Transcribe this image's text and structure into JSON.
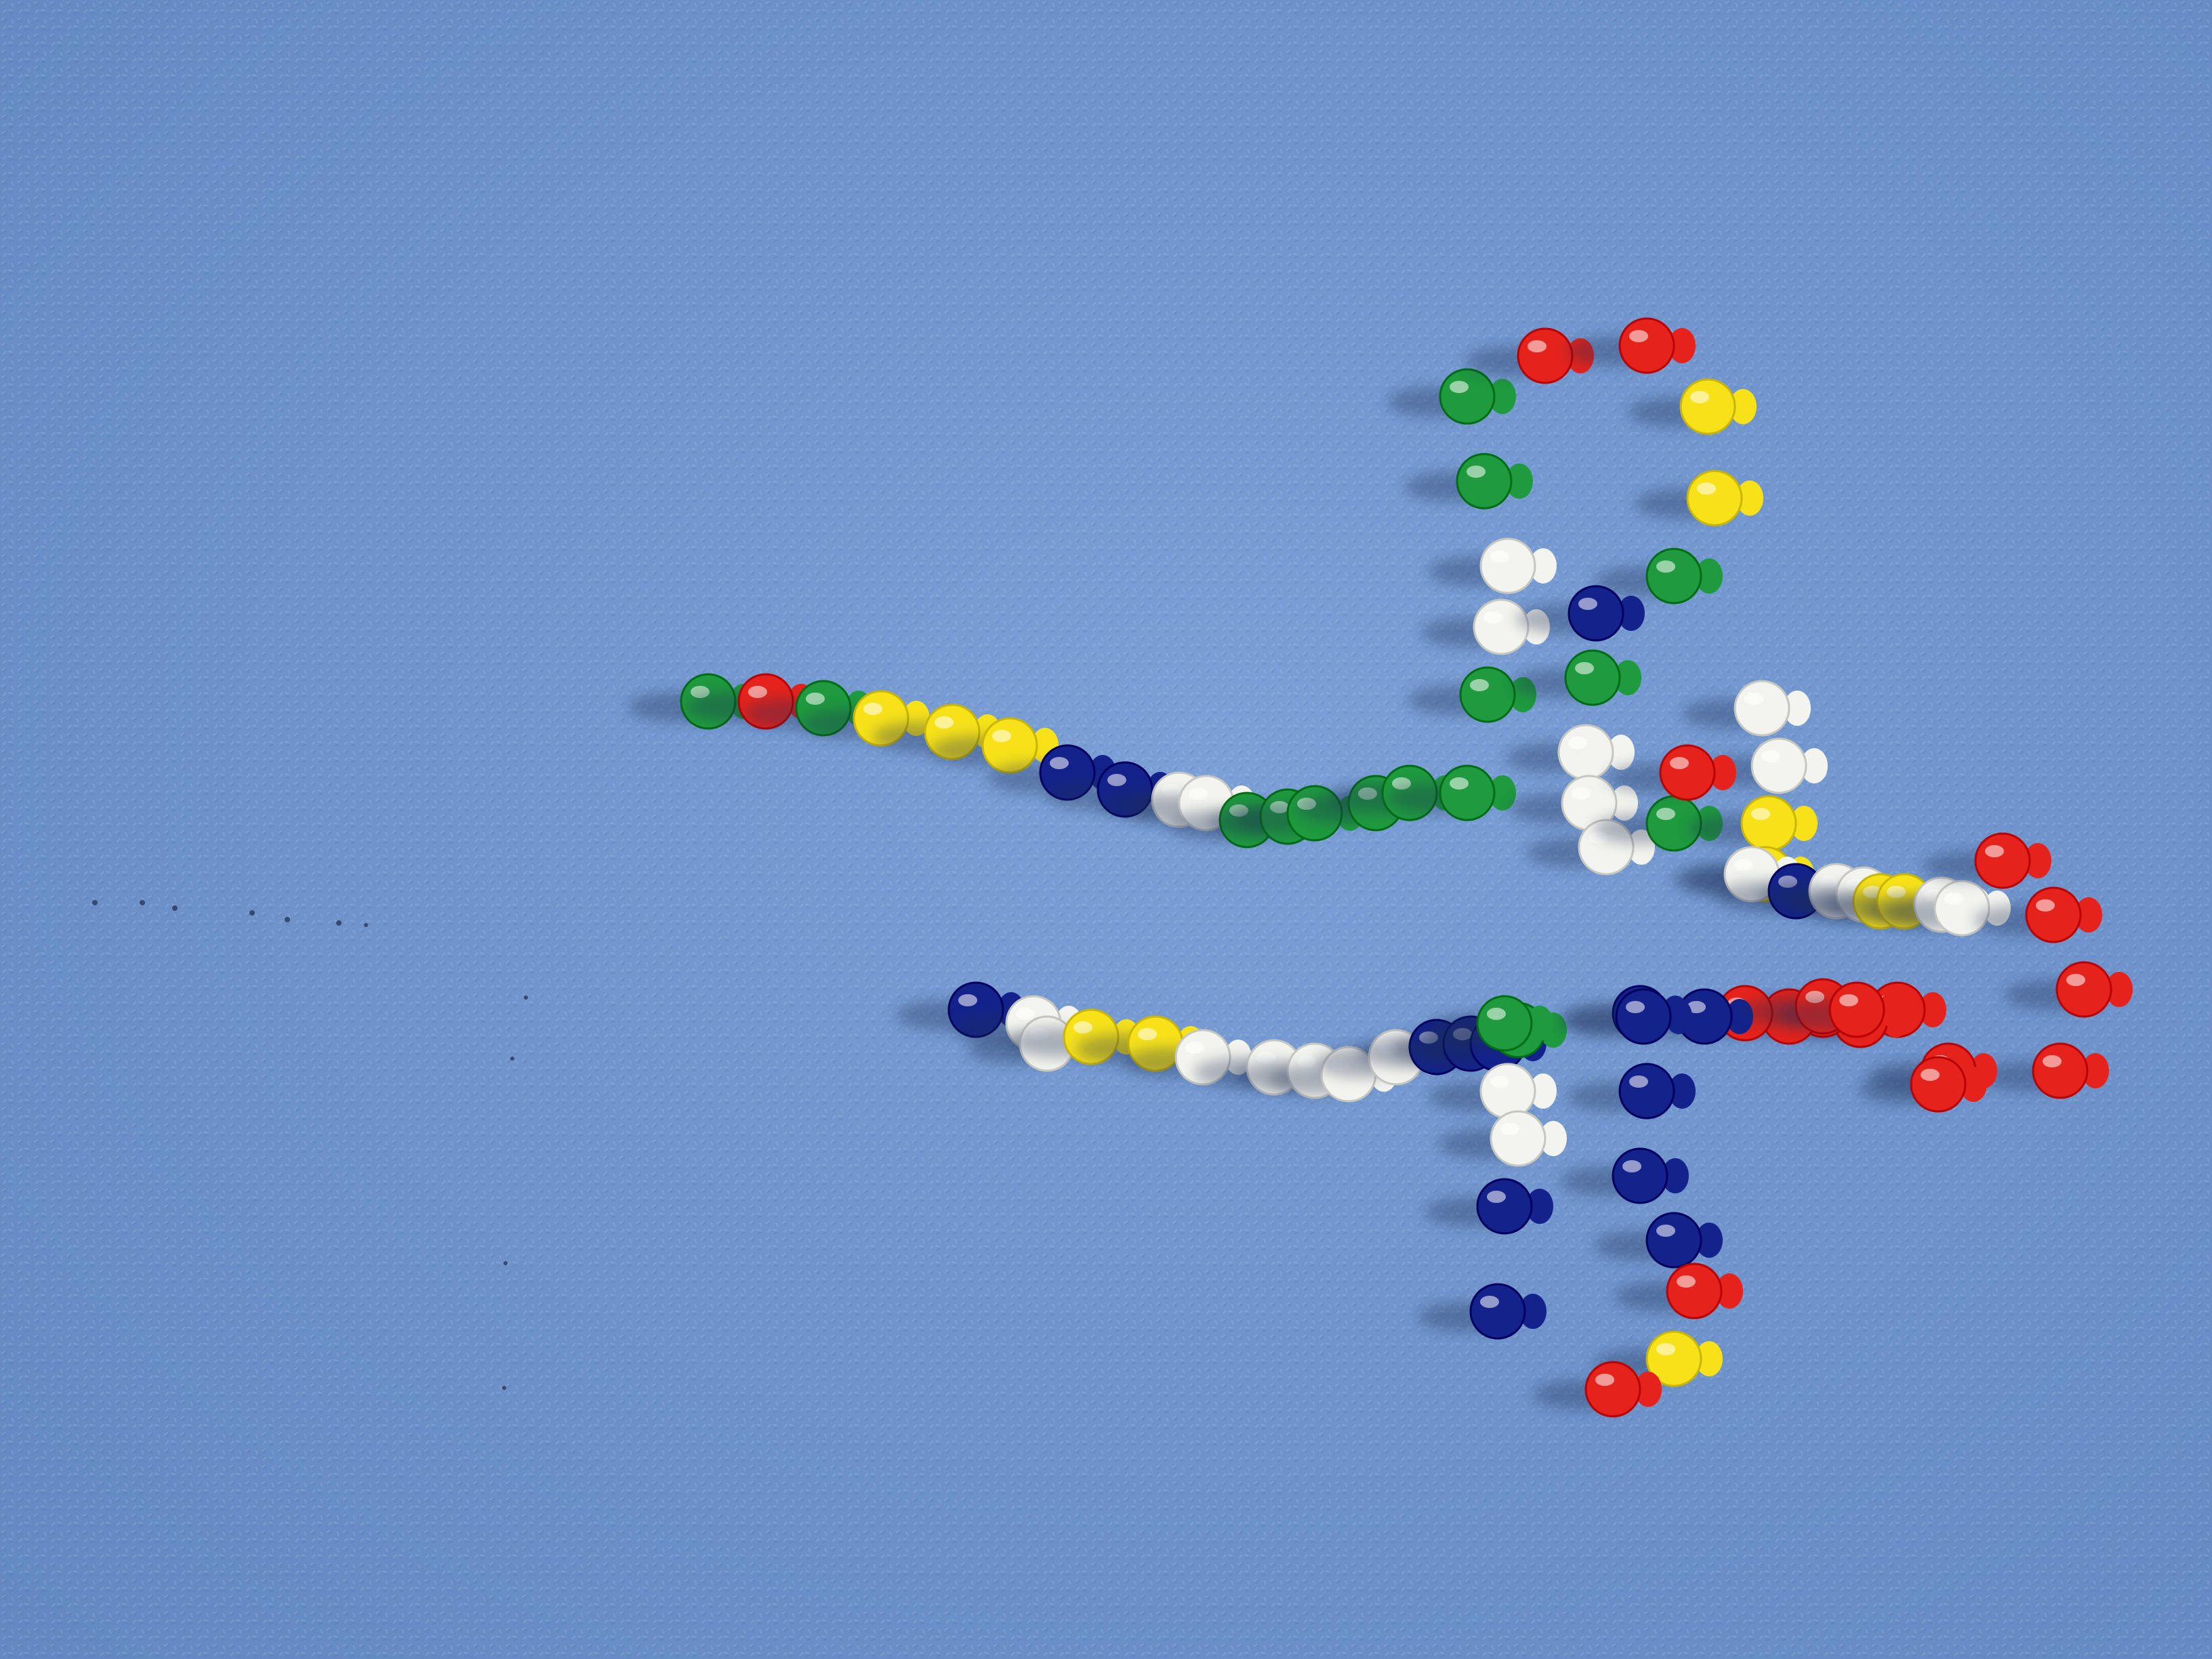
{
  "scene": {
    "subject": "pushpin-figure",
    "palette": {
      "felt": "#6f94cc",
      "green": "#1f9a3f",
      "red": "#e5231c",
      "yellow": "#f7e21a",
      "blue": "#14238c",
      "white": "#f4f4ee"
    },
    "pin_groups": [
      {
        "name": "left-arm-outer-strand",
        "pins": [
          "green",
          "red",
          "green",
          "yellow",
          "yellow",
          "yellow",
          "blue",
          "blue",
          "white",
          "white",
          "green",
          "green",
          "green",
          "green",
          "green",
          "green"
        ]
      },
      {
        "name": "left-arm-inner-strand",
        "pins": [
          "blue",
          "white",
          "white",
          "yellow",
          "yellow",
          "white",
          "white",
          "white",
          "white",
          "white",
          "blue",
          "blue",
          "blue",
          "green"
        ]
      },
      {
        "name": "upper-column",
        "pins": [
          "green",
          "red",
          "red",
          "yellow",
          "yellow",
          "green",
          "green",
          "white",
          "white",
          "green",
          "blue",
          "green",
          "white",
          "white",
          "white",
          "green"
        ]
      },
      {
        "name": "center-cluster",
        "pins": [
          "white",
          "white",
          "yellow",
          "yellow",
          "red",
          "white",
          "blue",
          "white",
          "white",
          "yellow",
          "yellow",
          "white",
          "white"
        ]
      },
      {
        "name": "right-loop",
        "pins": [
          "red",
          "red",
          "red",
          "red",
          "red",
          "red",
          "red",
          "red",
          "red",
          "red",
          "red",
          "blue",
          "blue",
          "red",
          "red"
        ]
      },
      {
        "name": "lower-column",
        "pins": [
          "green",
          "white",
          "white",
          "blue",
          "blue",
          "blue",
          "blue",
          "blue",
          "blue",
          "red",
          "yellow",
          "red"
        ]
      }
    ]
  }
}
